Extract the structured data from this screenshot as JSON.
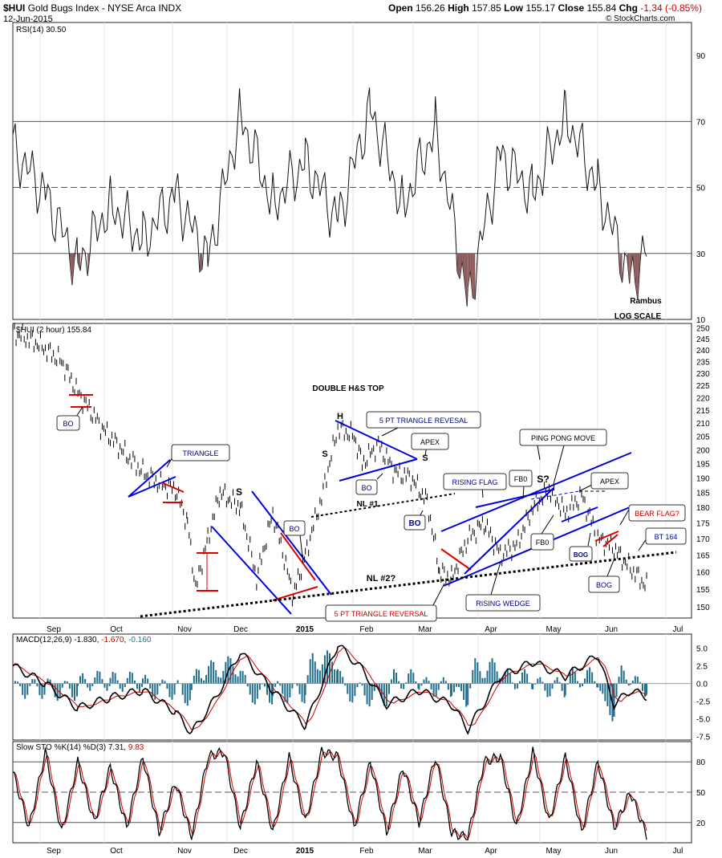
{
  "header": {
    "symbol": "$HUI",
    "name": "Gold Bugs Index - NYSE Arca",
    "exchange": "INDX",
    "date": "12-Jun-2015",
    "copyright": "© StockCharts.com",
    "quote": {
      "open_label": "Open",
      "open": "156.26",
      "high_label": "High",
      "high": "157.85",
      "low_label": "Low",
      "low": "155.17",
      "close_label": "Close",
      "close": "155.84",
      "chg_label": "Chg",
      "chg": "-1.34 (-0.85%)",
      "chg_color": "#cc0000"
    }
  },
  "chart_data": [
    {
      "type": "line",
      "panel": "rsi",
      "legend": "RSI(14) 30.50",
      "ylim": [
        10,
        100
      ],
      "yticks": [
        10,
        30,
        50,
        70,
        90
      ],
      "ref_lines": [
        30,
        50,
        70
      ],
      "oversold_fill": "#8b5a5a",
      "notes": [
        "Rambus",
        "LOG SCALE"
      ],
      "x": [
        0,
        40,
        80,
        120,
        160,
        200,
        240,
        280,
        320,
        360,
        400,
        440,
        480,
        520,
        560,
        600,
        640,
        680,
        720,
        760,
        780
      ],
      "values": [
        62,
        48,
        26,
        45,
        34,
        48,
        28,
        72,
        45,
        58,
        40,
        74,
        44,
        68,
        15,
        60,
        48,
        72,
        50,
        22,
        30.5
      ]
    },
    {
      "type": "line",
      "panel": "price",
      "legend": "$HUI (2 hour) 155.84",
      "scale": "log",
      "ylim": [
        147,
        252
      ],
      "yticks": [
        150,
        155,
        160,
        165,
        170,
        175,
        180,
        185,
        190,
        195,
        200,
        205,
        210,
        215,
        220,
        225,
        230,
        235,
        240,
        245,
        250
      ],
      "xticks": [
        "Sep",
        "Oct",
        "Nov",
        "Dec",
        "2015",
        "Feb",
        "Mar",
        "Apr",
        "May",
        "Jun",
        "Jul"
      ],
      "x": [
        0,
        30,
        60,
        80,
        110,
        140,
        160,
        180,
        200,
        215,
        225,
        240,
        255,
        280,
        300,
        320,
        345,
        360,
        380,
        400,
        420,
        430,
        450,
        470,
        490,
        510,
        525,
        540,
        560,
        580,
        600,
        620,
        640,
        660,
        680,
        700,
        720,
        740,
        760,
        780
      ],
      "values": [
        248,
        243,
        235,
        222,
        208,
        198,
        192,
        188,
        186,
        175,
        155,
        170,
        185,
        180,
        158,
        178,
        153,
        165,
        183,
        208,
        205,
        195,
        202,
        192,
        190,
        182,
        160,
        158,
        170,
        175,
        165,
        168,
        180,
        186,
        178,
        184,
        170,
        167,
        161,
        155.84
      ],
      "title": "DOUBLE H&S TOP",
      "annotations": [
        {
          "text": "BO",
          "color": "#00008b"
        },
        {
          "text": "TRIANGLE",
          "color": "#00008b"
        },
        {
          "text": "S",
          "color": "#000000"
        },
        {
          "text": "BO",
          "color": "#00008b"
        },
        {
          "text": "H",
          "color": "#000000"
        },
        {
          "text": "5 PT TRIANGLE REVESAL",
          "color": "#00008b"
        },
        {
          "text": "APEX",
          "color": "#000000"
        },
        {
          "text": "S",
          "color": "#000000"
        },
        {
          "text": "S",
          "color": "#000000"
        },
        {
          "text": "BO",
          "color": "#00008b"
        },
        {
          "text": "NL #1",
          "color": "#000000"
        },
        {
          "text": "BO",
          "color": "#00008b"
        },
        {
          "text": "NL #2?",
          "color": "#000000"
        },
        {
          "text": "5 PT TRIANGLE REVERSAL",
          "color": "#cc0000"
        },
        {
          "text": "RISING FLAG",
          "color": "#00008b"
        },
        {
          "text": "FB0",
          "color": "#000000"
        },
        {
          "text": "FB0",
          "color": "#000000"
        },
        {
          "text": "PING PONG MOVE",
          "color": "#000000"
        },
        {
          "text": "S?",
          "color": "#000000"
        },
        {
          "text": "APEX",
          "color": "#000000"
        },
        {
          "text": "RISING WEDGE",
          "color": "#00008b"
        },
        {
          "text": "BOG",
          "color": "#00008b"
        },
        {
          "text": "BEAR FLAG?",
          "color": "#cc0000"
        },
        {
          "text": "BT 164",
          "color": "#00008b"
        },
        {
          "text": "BOG",
          "color": "#00008b"
        }
      ]
    },
    {
      "type": "line",
      "panel": "macd",
      "legend_prefix": "MACD(12,26,9)",
      "legend_macd": "-1.830",
      "legend_signal": "-1.670",
      "legend_hist": "-0.160",
      "ylim": [
        -8,
        7
      ],
      "yticks": [
        "5.0",
        "2.5",
        "0.0",
        "-2.5",
        "-5.0",
        "-7.5"
      ],
      "ytick_values": [
        5,
        2.5,
        0,
        -2.5,
        -5,
        -7.5
      ],
      "colors": {
        "macd": "#000000",
        "signal": "#cc0000",
        "hist": "#1f6e8c"
      },
      "x": [
        0,
        40,
        80,
        120,
        160,
        200,
        220,
        250,
        280,
        320,
        360,
        400,
        430,
        460,
        500,
        540,
        560,
        600,
        640,
        680,
        720,
        740,
        760,
        780
      ],
      "values": [
        2.5,
        0.0,
        -3.5,
        -2.0,
        -1.0,
        -4.0,
        -7.0,
        -2.0,
        4.5,
        -1.0,
        -6.0,
        5.5,
        2.0,
        -3.0,
        -1.0,
        -3.0,
        -6.5,
        1.0,
        3.0,
        1.0,
        4.0,
        -3.0,
        -1.0,
        -1.83
      ]
    },
    {
      "type": "line",
      "panel": "stochastic",
      "legend_prefix": "Slow STO %K(14) %D(3)",
      "legend_k": "7.31",
      "legend_d": "9.83",
      "ylim": [
        0,
        100
      ],
      "yticks": [
        20,
        50,
        80
      ],
      "colors": {
        "k": "#000000",
        "d": "#cc0000"
      },
      "x": [
        0,
        20,
        40,
        60,
        80,
        100,
        120,
        140,
        160,
        180,
        200,
        220,
        240,
        260,
        280,
        300,
        320,
        340,
        360,
        380,
        400,
        420,
        440,
        460,
        480,
        500,
        520,
        540,
        560,
        580,
        600,
        620,
        640,
        660,
        680,
        700,
        720,
        740,
        760,
        780
      ],
      "values": [
        70,
        15,
        90,
        10,
        80,
        20,
        75,
        15,
        85,
        10,
        60,
        5,
        85,
        90,
        15,
        80,
        10,
        85,
        20,
        90,
        85,
        15,
        80,
        10,
        75,
        20,
        85,
        10,
        5,
        80,
        85,
        15,
        90,
        20,
        85,
        10,
        80,
        15,
        50,
        7.31
      ]
    }
  ]
}
